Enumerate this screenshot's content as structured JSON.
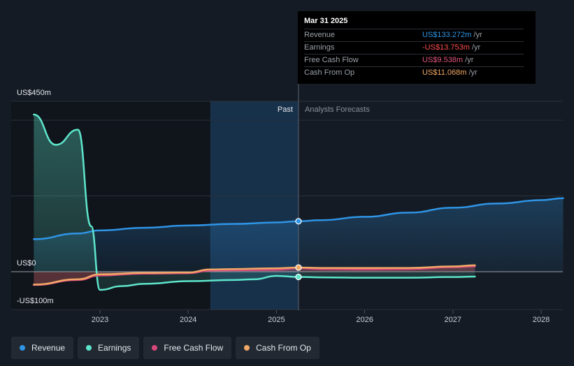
{
  "chart_data": {
    "type": "line",
    "ylim": [
      -100,
      450
    ],
    "y_tick_labels": [
      "US$450m",
      "US$0",
      "-US$100m"
    ],
    "x_tick_labels": [
      "2023",
      "2024",
      "2025",
      "2026",
      "2027",
      "2028"
    ],
    "regions": {
      "past_label": "Past",
      "forecast_label": "Analysts Forecasts"
    },
    "series": [
      {
        "name": "Revenue",
        "color": "#2f95e6",
        "x": [
          2022.25,
          2022.75,
          2023.0,
          2023.5,
          2024.0,
          2024.5,
          2025.0,
          2025.25,
          2025.5,
          2026.0,
          2026.5,
          2027.0,
          2027.5,
          2028.0,
          2028.25
        ],
        "y": [
          86,
          101,
          109,
          116,
          122,
          126,
          130,
          133.3,
          136,
          145,
          156,
          169,
          180,
          189,
          194
        ]
      },
      {
        "name": "Earnings",
        "color": "#5ee6cc",
        "x": [
          2022.25,
          2022.5,
          2022.75,
          2022.9,
          2023.0,
          2023.25,
          2023.5,
          2024.0,
          2024.5,
          2024.75,
          2025.0,
          2025.25,
          2025.5,
          2026.0,
          2026.5,
          2027.0,
          2027.25
        ],
        "y": [
          415,
          335,
          375,
          120,
          -48,
          -38,
          -32,
          -25,
          -22,
          -20,
          -11,
          -13.8,
          -15,
          -16,
          -16,
          -14,
          -13
        ]
      },
      {
        "name": "Free Cash Flow",
        "color": "#d9487a",
        "x": [
          2022.25,
          2022.75,
          2023.0,
          2023.5,
          2024.0,
          2024.25,
          2024.5,
          2025.0,
          2025.25,
          2025.5,
          2026.0,
          2026.5,
          2027.0,
          2027.25
        ],
        "y": [
          -35,
          -22,
          -10,
          -5,
          -4,
          3,
          4,
          5,
          9.5,
          7,
          6,
          7,
          12,
          14
        ]
      },
      {
        "name": "Cash From Op",
        "color": "#f0a866",
        "x": [
          2022.25,
          2022.75,
          2023.0,
          2023.5,
          2024.0,
          2024.25,
          2024.5,
          2025.0,
          2025.25,
          2025.5,
          2026.0,
          2026.5,
          2027.0,
          2027.25
        ],
        "y": [
          -34,
          -20,
          -7,
          -3,
          -2,
          6,
          7,
          9,
          11.1,
          10,
          10,
          10,
          14,
          17
        ]
      }
    ],
    "highlight_x": 2025.25
  },
  "tooltip": {
    "date": "Mar 31 2025",
    "rows": [
      {
        "name": "Revenue",
        "value": "US$133.272m",
        "unit": "/yr",
        "color": "#2f95e6"
      },
      {
        "name": "Earnings",
        "value": "-US$13.753m",
        "unit": "/yr",
        "color": "#ff4d4d"
      },
      {
        "name": "Free Cash Flow",
        "value": "US$9.538m",
        "unit": "/yr",
        "color": "#e0557f"
      },
      {
        "name": "Cash From Op",
        "value": "US$11.068m",
        "unit": "/yr",
        "color": "#f0a866"
      }
    ]
  },
  "legend": [
    {
      "label": "Revenue",
      "color": "#2f95e6"
    },
    {
      "label": "Earnings",
      "color": "#5ee6cc"
    },
    {
      "label": "Free Cash Flow",
      "color": "#d9487a"
    },
    {
      "label": "Cash From Op",
      "color": "#f0a866"
    }
  ]
}
